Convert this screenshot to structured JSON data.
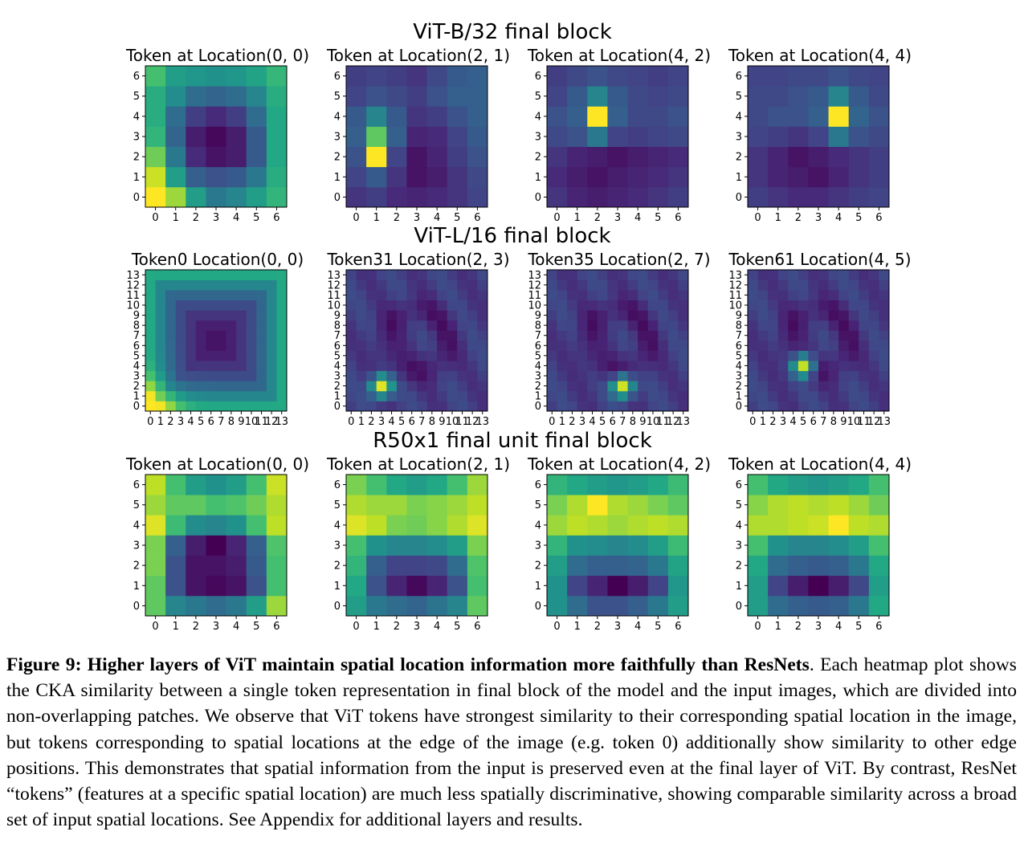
{
  "chart_data": [
    {
      "type": "heatmap",
      "title": "ViT-B/32 final block",
      "grid_size": 7,
      "panels": [
        {
          "title": "Token at Location(0, 0)",
          "values": [
            [
              1.0,
              0.85,
              0.55,
              0.4,
              0.45,
              0.55,
              0.65
            ],
            [
              0.92,
              0.55,
              0.3,
              0.25,
              0.28,
              0.4,
              0.62
            ],
            [
              0.78,
              0.4,
              0.12,
              0.05,
              0.08,
              0.28,
              0.6
            ],
            [
              0.65,
              0.32,
              0.08,
              0.02,
              0.08,
              0.28,
              0.6
            ],
            [
              0.62,
              0.35,
              0.18,
              0.12,
              0.18,
              0.35,
              0.6
            ],
            [
              0.62,
              0.48,
              0.35,
              0.32,
              0.35,
              0.45,
              0.62
            ],
            [
              0.7,
              0.55,
              0.52,
              0.5,
              0.52,
              0.58,
              0.66
            ]
          ]
        },
        {
          "title": "Token at Location(2, 1)",
          "values": [
            [
              0.15,
              0.18,
              0.12,
              0.1,
              0.12,
              0.15,
              0.2
            ],
            [
              0.2,
              0.28,
              0.15,
              0.05,
              0.08,
              0.15,
              0.22
            ],
            [
              0.25,
              1.0,
              0.2,
              0.05,
              0.1,
              0.18,
              0.25
            ],
            [
              0.3,
              0.75,
              0.3,
              0.1,
              0.12,
              0.2,
              0.28
            ],
            [
              0.28,
              0.45,
              0.28,
              0.15,
              0.18,
              0.25,
              0.3
            ],
            [
              0.2,
              0.25,
              0.22,
              0.18,
              0.25,
              0.3,
              0.3
            ],
            [
              0.18,
              0.2,
              0.18,
              0.15,
              0.22,
              0.28,
              0.3
            ]
          ]
        },
        {
          "title": "Token at Location(4, 2)",
          "values": [
            [
              0.15,
              0.1,
              0.08,
              0.1,
              0.12,
              0.15,
              0.18
            ],
            [
              0.12,
              0.08,
              0.05,
              0.08,
              0.1,
              0.12,
              0.15
            ],
            [
              0.15,
              0.1,
              0.08,
              0.05,
              0.08,
              0.1,
              0.12
            ],
            [
              0.22,
              0.25,
              0.4,
              0.2,
              0.18,
              0.2,
              0.22
            ],
            [
              0.25,
              0.3,
              1.0,
              0.3,
              0.22,
              0.22,
              0.25
            ],
            [
              0.2,
              0.28,
              0.45,
              0.28,
              0.22,
              0.2,
              0.22
            ],
            [
              0.18,
              0.22,
              0.25,
              0.22,
              0.2,
              0.18,
              0.2
            ]
          ]
        },
        {
          "title": "Token at Location(4, 4)",
          "values": [
            [
              0.18,
              0.15,
              0.12,
              0.12,
              0.15,
              0.18,
              0.2
            ],
            [
              0.15,
              0.1,
              0.08,
              0.05,
              0.1,
              0.15,
              0.18
            ],
            [
              0.15,
              0.1,
              0.05,
              0.08,
              0.12,
              0.15,
              0.18
            ],
            [
              0.2,
              0.18,
              0.15,
              0.2,
              0.4,
              0.25,
              0.22
            ],
            [
              0.22,
              0.25,
              0.25,
              0.3,
              1.0,
              0.32,
              0.25
            ],
            [
              0.22,
              0.22,
              0.25,
              0.28,
              0.45,
              0.28,
              0.22
            ],
            [
              0.2,
              0.2,
              0.22,
              0.22,
              0.25,
              0.22,
              0.2
            ]
          ]
        }
      ]
    },
    {
      "type": "heatmap",
      "title": "ViT-L/16 final block",
      "grid_size": 14,
      "panels": [
        {
          "title": "Token0 Location(0, 0)",
          "peak": [
            0,
            0
          ],
          "pattern": "edge-ring"
        },
        {
          "title": "Token31 Location(2, 3)",
          "peak": [
            2,
            3
          ],
          "pattern": "localized"
        },
        {
          "title": "Token35 Location(2, 7)",
          "peak": [
            2,
            7
          ],
          "pattern": "localized"
        },
        {
          "title": "Token61 Location(4, 5)",
          "peak": [
            4,
            5
          ],
          "pattern": "localized"
        }
      ]
    },
    {
      "type": "heatmap",
      "title": "R50x1 final unit final block",
      "grid_size": 7,
      "panels": [
        {
          "title": "Token at Location(0, 0)",
          "values": [
            [
              0.75,
              0.45,
              0.4,
              0.35,
              0.4,
              0.55,
              0.85
            ],
            [
              0.75,
              0.25,
              0.05,
              0.02,
              0.05,
              0.25,
              0.7
            ],
            [
              0.8,
              0.25,
              0.05,
              0.05,
              0.08,
              0.28,
              0.7
            ],
            [
              0.8,
              0.3,
              0.08,
              0.0,
              0.1,
              0.3,
              0.72
            ],
            [
              0.95,
              0.68,
              0.48,
              0.45,
              0.5,
              0.7,
              0.9
            ],
            [
              0.85,
              0.75,
              0.75,
              0.7,
              0.72,
              0.78,
              0.88
            ],
            [
              0.9,
              0.7,
              0.55,
              0.5,
              0.55,
              0.7,
              0.92
            ]
          ]
        },
        {
          "title": "Token at Location(2, 1)",
          "values": [
            [
              0.55,
              0.4,
              0.35,
              0.32,
              0.38,
              0.45,
              0.75
            ],
            [
              0.6,
              0.25,
              0.1,
              0.02,
              0.1,
              0.25,
              0.7
            ],
            [
              0.65,
              0.3,
              0.2,
              0.2,
              0.22,
              0.35,
              0.72
            ],
            [
              0.7,
              0.5,
              0.45,
              0.45,
              0.48,
              0.55,
              0.8
            ],
            [
              0.95,
              0.9,
              0.8,
              0.78,
              0.82,
              0.88,
              0.95
            ],
            [
              0.88,
              0.85,
              0.85,
              0.8,
              0.82,
              0.85,
              0.9
            ],
            [
              0.8,
              0.7,
              0.6,
              0.55,
              0.6,
              0.7,
              0.85
            ]
          ]
        },
        {
          "title": "Token at Location(4, 2)",
          "values": [
            [
              0.5,
              0.35,
              0.25,
              0.25,
              0.3,
              0.4,
              0.55
            ],
            [
              0.5,
              0.2,
              0.1,
              0.0,
              0.08,
              0.2,
              0.52
            ],
            [
              0.55,
              0.35,
              0.3,
              0.3,
              0.32,
              0.4,
              0.58
            ],
            [
              0.65,
              0.5,
              0.48,
              0.45,
              0.48,
              0.55,
              0.68
            ],
            [
              0.85,
              0.9,
              0.88,
              0.85,
              0.88,
              0.9,
              0.88
            ],
            [
              0.8,
              0.88,
              1.0,
              0.88,
              0.85,
              0.8,
              0.75
            ],
            [
              0.65,
              0.6,
              0.55,
              0.52,
              0.55,
              0.6,
              0.68
            ]
          ]
        },
        {
          "title": "Token at Location(4, 4)",
          "values": [
            [
              0.55,
              0.35,
              0.3,
              0.28,
              0.3,
              0.4,
              0.6
            ],
            [
              0.55,
              0.2,
              0.08,
              0.0,
              0.08,
              0.22,
              0.55
            ],
            [
              0.6,
              0.35,
              0.3,
              0.28,
              0.3,
              0.4,
              0.6
            ],
            [
              0.7,
              0.5,
              0.45,
              0.45,
              0.48,
              0.55,
              0.7
            ],
            [
              0.88,
              0.88,
              0.9,
              0.92,
              1.0,
              0.9,
              0.88
            ],
            [
              0.82,
              0.88,
              0.9,
              0.88,
              0.9,
              0.85,
              0.78
            ],
            [
              0.7,
              0.6,
              0.55,
              0.52,
              0.55,
              0.6,
              0.7
            ]
          ]
        }
      ]
    }
  ],
  "caption": {
    "label": "Figure 9: Higher layers of ViT maintain spatial location information more faithfully than ResNets",
    "text": ". Each heatmap plot shows the CKA similarity between a single token representation in final block of the model and the input images, which are divided into non-overlapping patches. We observe that ViT tokens have strongest similarity to their corresponding spatial location in the image, but tokens corresponding to spatial locations at the edge of the image (e.g. token 0) additionally show similarity to other edge positions. This demonstrates that spatial information from the input is preserved even at the final layer of ViT. By contrast, ResNet “tokens” (features at a specific spatial location) are much less spatially discriminative, showing comparable similarity across a broad set of input spatial locations. See Appendix for additional layers and results."
  }
}
